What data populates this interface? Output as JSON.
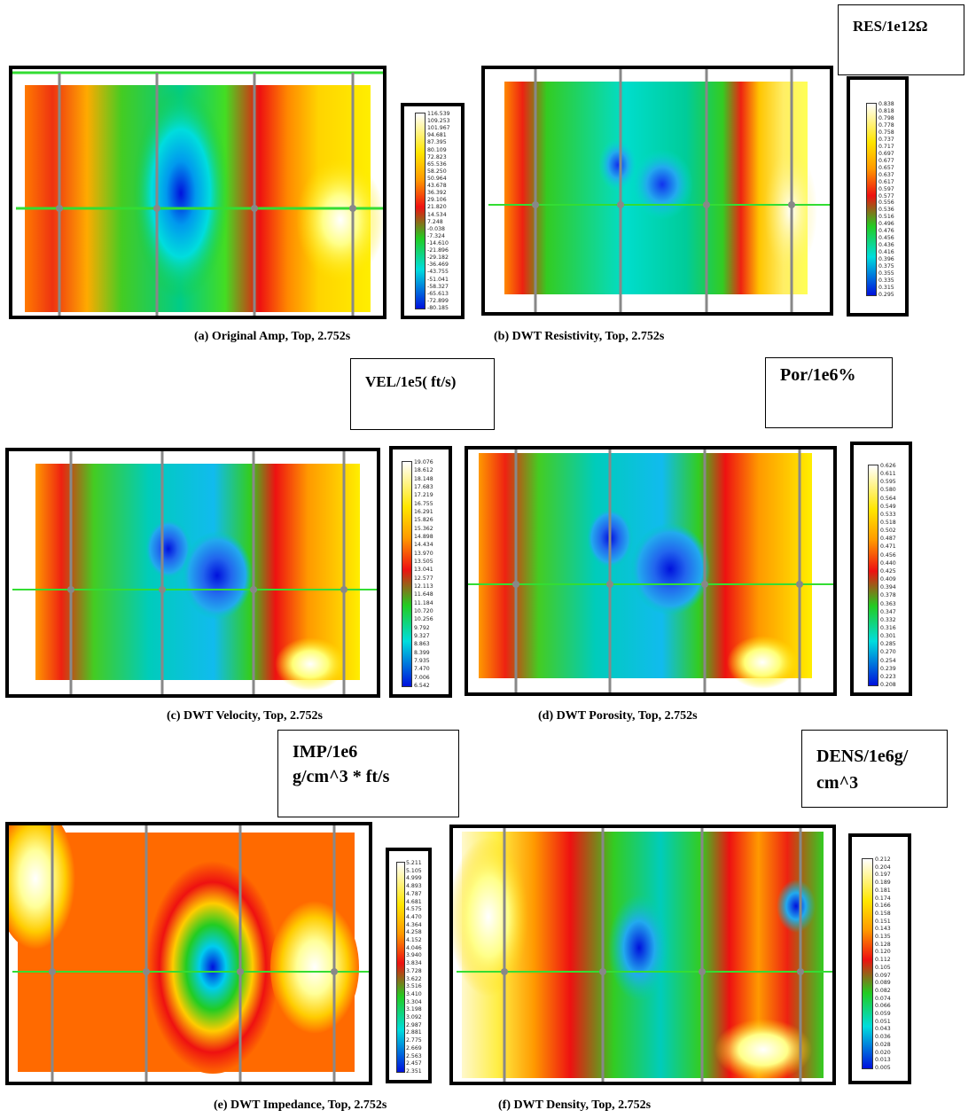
{
  "panels": [
    {
      "id": "a",
      "caption": "(a) Original Amp, Top, 2.752s",
      "unit": "",
      "scale": [
        "116.539",
        "109.253",
        "101.967",
        "94.681",
        "87.395",
        "80.109",
        "72.823",
        "65.536",
        "58.250",
        "50.964",
        "43.678",
        "36.392",
        "29.106",
        "21.820",
        "14.534",
        "7.248",
        "-0.038",
        "-7.324",
        "-14.610",
        "-21.896",
        "-29.182",
        "-36.469",
        "-43.755",
        "-51.041",
        "-58.327",
        "-65.613",
        "-72.899",
        "-80.185"
      ]
    },
    {
      "id": "b",
      "caption": "(b) DWT Resistivity, Top, 2.752s",
      "unit": "RES/1e12Ω",
      "scale": [
        "0.838",
        "0.818",
        "0.798",
        "0.778",
        "0.758",
        "0.737",
        "0.717",
        "0.697",
        "0.677",
        "0.657",
        "0.637",
        "0.617",
        "0.597",
        "0.577",
        "0.556",
        "0.536",
        "0.516",
        "0.496",
        "0.476",
        "0.456",
        "0.436",
        "0.416",
        "0.396",
        "0.375",
        "0.355",
        "0.335",
        "0.315",
        "0.295"
      ]
    },
    {
      "id": "c",
      "caption": "(c) DWT Velocity, Top, 2.752s",
      "unit": "VEL/1e5( ft/s)",
      "scale": [
        "19.076",
        "18.612",
        "18.148",
        "17.683",
        "17.219",
        "16.755",
        "16.291",
        "15.826",
        "15.362",
        "14.898",
        "14.434",
        "13.970",
        "13.505",
        "13.041",
        "12.577",
        "12.113",
        "11.648",
        "11.184",
        "10.720",
        "10.256",
        "9.792",
        "9.327",
        "8.863",
        "8.399",
        "7.935",
        "7.470",
        "7.006",
        "6.542"
      ]
    },
    {
      "id": "d",
      "caption": "(d) DWT Porosity, Top, 2.752s",
      "unit": "Por/1e6%",
      "scale": [
        "0.626",
        "0.611",
        "0.595",
        "0.580",
        "0.564",
        "0.549",
        "0.533",
        "0.518",
        "0.502",
        "0.487",
        "0.471",
        "0.456",
        "0.440",
        "0.425",
        "0.409",
        "0.394",
        "0.378",
        "0.363",
        "0.347",
        "0.332",
        "0.316",
        "0.301",
        "0.285",
        "0.270",
        "0.254",
        "0.239",
        "0.223",
        "0.208"
      ]
    },
    {
      "id": "e",
      "caption": "(e) DWT Impedance, Top, 2.752s",
      "unit_line1": "IMP/1e6",
      "unit_line2": "g/cm^3 * ft/s",
      "scale": [
        "5.211",
        "5.105",
        "4.999",
        "4.893",
        "4.787",
        "4.681",
        "4.575",
        "4.470",
        "4.364",
        "4.258",
        "4.152",
        "4.046",
        "3.940",
        "3.834",
        "3.728",
        "3.622",
        "3.516",
        "3.410",
        "3.304",
        "3.198",
        "3.092",
        "2.987",
        "2.881",
        "2.775",
        "2.669",
        "2.563",
        "2.457",
        "2.351"
      ]
    },
    {
      "id": "f",
      "caption": "(f) DWT Density, Top, 2.752s",
      "unit_line1": "DENS/1e6g/",
      "unit_line2": "cm^3",
      "scale": [
        "0.212",
        "0.204",
        "0.197",
        "0.189",
        "0.181",
        "0.174",
        "0.166",
        "0.158",
        "0.151",
        "0.143",
        "0.135",
        "0.128",
        "0.120",
        "0.112",
        "0.105",
        "0.097",
        "0.089",
        "0.082",
        "0.074",
        "0.066",
        "0.059",
        "0.051",
        "0.043",
        "0.036",
        "0.028",
        "0.020",
        "0.013",
        "0.005"
      ]
    }
  ],
  "colors": {
    "scale_top": "#ffffff",
    "scale_yellow": "#ffe600",
    "scale_orange": "#ff9900",
    "scale_red": "#ee1111",
    "scale_green": "#22cc22",
    "scale_cyan": "#00dddd",
    "scale_blue": "#0011dd",
    "green_line": "#33dd33",
    "well_line": "#888888",
    "frame": "#000000"
  }
}
